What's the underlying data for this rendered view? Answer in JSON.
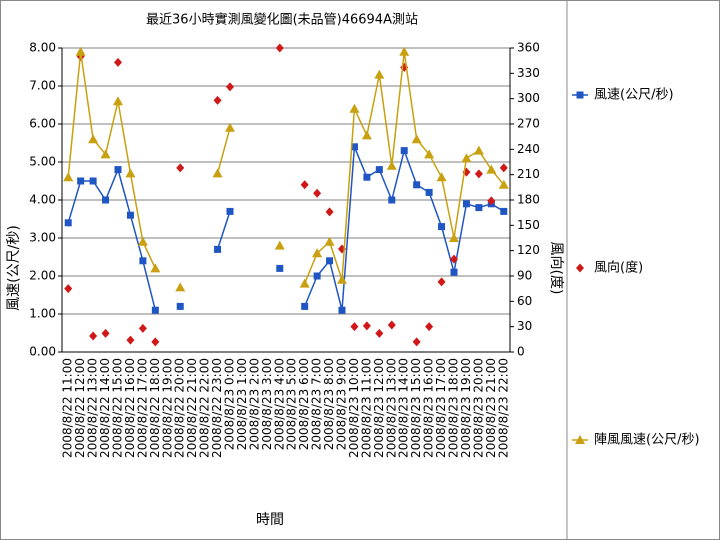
{
  "chart_data": {
    "type": "line",
    "title": "最近36小時實測風變化圖(未品管)46694A測站",
    "x_label": "時間",
    "y_label": "風速(公尺/秒)",
    "y2_label": "風向(度)",
    "categories": [
      "2008/8/22 11:00",
      "2008/8/22 12:00",
      "2008/8/22 13:00",
      "2008/8/22 14:00",
      "2008/8/22 15:00",
      "2008/8/22 16:00",
      "2008/8/22 17:00",
      "2008/8/22 18:00",
      "2008/8/22 19:00",
      "2008/8/22 20:00",
      "2008/8/22 21:00",
      "2008/8/22 22:00",
      "2008/8/22 23:00",
      "2008/8/23 0:00",
      "2008/8/23 1:00",
      "2008/8/23 2:00",
      "2008/8/23 3:00",
      "2008/8/23 4:00",
      "2008/8/23 5:00",
      "2008/8/23 6:00",
      "2008/8/23 7:00",
      "2008/8/23 8:00",
      "2008/8/23 9:00",
      "2008/8/23 10:00",
      "2008/8/23 11:00",
      "2008/8/23 12:00",
      "2008/8/23 13:00",
      "2008/8/23 14:00",
      "2008/8/23 15:00",
      "2008/8/23 16:00",
      "2008/8/23 17:00",
      "2008/8/23 18:00",
      "2008/8/23 19:00",
      "2008/8/23 20:00",
      "2008/8/23 21:00",
      "2008/8/23 22:00"
    ],
    "series": [
      {
        "name": "風速(公尺/秒)",
        "color": "#1f56c4",
        "marker": "square",
        "line": true,
        "values": [
          3.4,
          4.5,
          4.5,
          4.0,
          4.8,
          3.6,
          2.4,
          1.1,
          null,
          1.2,
          null,
          null,
          2.7,
          3.7,
          null,
          null,
          null,
          2.2,
          null,
          1.2,
          2.0,
          2.4,
          1.1,
          5.4,
          4.6,
          4.8,
          4.0,
          5.3,
          4.4,
          4.2,
          3.3,
          2.1,
          3.9,
          3.8,
          3.9,
          3.7
        ]
      },
      {
        "name": "風向(度)",
        "color": "#d01818",
        "marker": "diamond",
        "line": false,
        "axis": "y2",
        "values": [
          75,
          350,
          19,
          22,
          343,
          14,
          28,
          12,
          null,
          218,
          null,
          null,
          298,
          314,
          null,
          null,
          null,
          360,
          null,
          198,
          188,
          166,
          122,
          30,
          31,
          22,
          32,
          337,
          12,
          30,
          83,
          110,
          213,
          211,
          179,
          218
        ]
      },
      {
        "name": "陣風風速(公尺/秒)",
        "color": "#c9a010",
        "marker": "triangle",
        "line": true,
        "values": [
          4.6,
          7.9,
          5.6,
          5.2,
          6.6,
          4.7,
          2.9,
          2.2,
          null,
          1.7,
          null,
          null,
          4.7,
          5.9,
          null,
          null,
          null,
          2.8,
          null,
          1.8,
          2.6,
          2.9,
          1.9,
          6.4,
          5.7,
          7.3,
          4.9,
          7.9,
          5.6,
          5.2,
          4.6,
          3.0,
          5.1,
          5.3,
          4.8,
          4.4
        ]
      }
    ],
    "ylim": [
      0,
      8
    ],
    "yticks": [
      {
        "value": 0,
        "label": "0.00"
      },
      {
        "value": 1,
        "label": "1.00"
      },
      {
        "value": 2,
        "label": "2.00"
      },
      {
        "value": 3,
        "label": "3.00"
      },
      {
        "value": 4,
        "label": "4.00"
      },
      {
        "value": 5,
        "label": "5.00"
      },
      {
        "value": 6,
        "label": "6.00"
      },
      {
        "value": 7,
        "label": "7.00"
      },
      {
        "value": 8,
        "label": "8.00"
      }
    ],
    "y2lim": [
      0,
      360
    ],
    "y2ticks": [
      0,
      30,
      60,
      90,
      120,
      150,
      180,
      210,
      240,
      270,
      300,
      330,
      360
    ],
    "grid": true
  }
}
